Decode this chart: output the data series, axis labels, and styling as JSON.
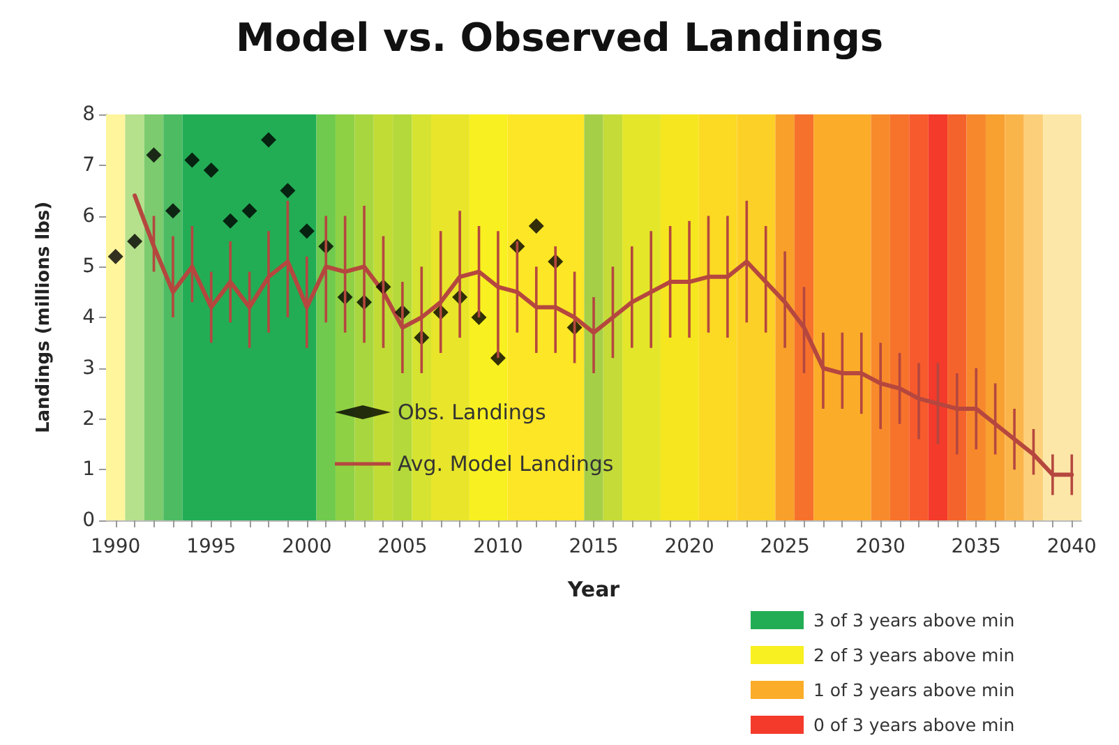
{
  "chart_data": {
    "type": "line",
    "title": "Model vs. Observed Landings",
    "xlabel": "Year",
    "ylabel": "Landings (millions lbs)",
    "x": [
      1990,
      1991,
      1992,
      1993,
      1994,
      1995,
      1996,
      1997,
      1998,
      1999,
      2000,
      2001,
      2002,
      2003,
      2004,
      2005,
      2006,
      2007,
      2008,
      2009,
      2010,
      2011,
      2012,
      2013,
      2014,
      2015,
      2016,
      2017,
      2018,
      2019,
      2020,
      2021,
      2022,
      2023,
      2024,
      2025,
      2026,
      2027,
      2028,
      2029,
      2030,
      2031,
      2032,
      2033,
      2034,
      2035,
      2036,
      2037,
      2038,
      2039,
      2040
    ],
    "series": [
      {
        "name": "Obs. Landings",
        "type": "scatter",
        "color": "#000000",
        "marker": "diamond",
        "values": [
          5.2,
          5.5,
          7.2,
          6.1,
          7.1,
          6.9,
          5.9,
          6.1,
          7.5,
          6.5,
          5.7,
          5.4,
          4.4,
          4.3,
          4.6,
          4.1,
          3.6,
          4.1,
          4.4,
          4.0,
          3.2,
          5.4,
          5.8,
          5.1,
          3.8,
          null,
          null,
          null,
          null,
          null,
          null,
          null,
          null,
          null,
          null,
          null,
          null,
          null,
          null,
          null,
          null,
          null,
          null,
          null,
          null,
          null,
          null,
          null,
          null,
          null,
          null
        ]
      },
      {
        "name": "Avg. Model Landings",
        "type": "line",
        "color": "#b5473f",
        "marker": "none",
        "values": [
          null,
          6.4,
          5.4,
          4.5,
          5.0,
          4.2,
          4.7,
          4.2,
          4.8,
          5.1,
          4.2,
          5.0,
          4.9,
          5.0,
          4.5,
          3.8,
          4.0,
          4.3,
          4.8,
          4.9,
          4.6,
          4.5,
          4.2,
          4.2,
          4.0,
          3.7,
          4.0,
          4.3,
          4.5,
          4.7,
          4.7,
          4.8,
          4.8,
          5.1,
          4.7,
          4.3,
          3.8,
          3.0,
          2.9,
          2.9,
          2.7,
          2.6,
          2.4,
          2.3,
          2.2,
          2.2,
          1.9,
          1.6,
          1.3,
          0.9,
          0.9
        ],
        "errors": [
          null,
          null,
          [
            4.9,
            6.0
          ],
          [
            4.0,
            5.6
          ],
          [
            4.3,
            5.8
          ],
          [
            3.5,
            4.9
          ],
          [
            3.9,
            5.5
          ],
          [
            3.4,
            4.9
          ],
          [
            3.7,
            5.7
          ],
          [
            4.0,
            6.3
          ],
          [
            3.4,
            5.2
          ],
          [
            3.9,
            6.0
          ],
          [
            3.7,
            6.0
          ],
          [
            3.5,
            6.2
          ],
          [
            3.4,
            5.6
          ],
          [
            2.9,
            4.7
          ],
          [
            2.9,
            5.0
          ],
          [
            3.3,
            5.7
          ],
          [
            3.6,
            6.1
          ],
          [
            4.0,
            5.8
          ],
          [
            3.2,
            5.7
          ],
          [
            3.7,
            5.5
          ],
          [
            3.3,
            5.0
          ],
          [
            3.3,
            5.4
          ],
          [
            3.1,
            4.9
          ],
          [
            2.9,
            4.4
          ],
          [
            3.2,
            5.0
          ],
          [
            3.4,
            5.4
          ],
          [
            3.4,
            5.7
          ],
          [
            3.6,
            5.8
          ],
          [
            3.6,
            5.9
          ],
          [
            3.7,
            6.0
          ],
          [
            3.6,
            6.0
          ],
          [
            3.9,
            6.3
          ],
          [
            3.7,
            5.8
          ],
          [
            3.4,
            5.3
          ],
          [
            2.9,
            4.6
          ],
          [
            2.2,
            3.7
          ],
          [
            2.2,
            3.7
          ],
          [
            2.1,
            3.7
          ],
          [
            1.8,
            3.5
          ],
          [
            1.9,
            3.3
          ],
          [
            1.6,
            3.1
          ],
          [
            1.5,
            3.1
          ],
          [
            1.3,
            2.9
          ],
          [
            1.4,
            3.0
          ],
          [
            1.3,
            2.7
          ],
          [
            1.0,
            2.2
          ],
          [
            0.9,
            1.8
          ],
          [
            0.5,
            1.3
          ],
          [
            0.5,
            1.3
          ]
        ]
      }
    ],
    "xlim": [
      1989.5,
      2040.5
    ],
    "xticks": [
      1990,
      {
        "value": 1991,
        "label": null
      },
      {
        "value": 1992,
        "label": null
      },
      {
        "value": 1993,
        "label": null
      },
      {
        "value": 1994,
        "label": null
      },
      1995,
      {
        "value": 1996,
        "label": null
      },
      {
        "value": 1997,
        "label": null
      },
      {
        "value": 1998,
        "label": null
      },
      {
        "value": 1999,
        "label": null
      },
      2000,
      {
        "value": 2001,
        "label": null
      },
      {
        "value": 2002,
        "label": null
      },
      {
        "value": 2003,
        "label": null
      },
      {
        "value": 2004,
        "label": null
      },
      2005,
      {
        "value": 2006,
        "label": null
      },
      {
        "value": 2007,
        "label": null
      },
      {
        "value": 2008,
        "label": null
      },
      {
        "value": 2009,
        "label": null
      },
      2010,
      {
        "value": 2011,
        "label": null
      },
      {
        "value": 2012,
        "label": null
      },
      {
        "value": 2013,
        "label": null
      },
      {
        "value": 2014,
        "label": null
      },
      2015,
      {
        "value": 2016,
        "label": null
      },
      {
        "value": 2017,
        "label": null
      },
      {
        "value": 2018,
        "label": null
      },
      {
        "value": 2019,
        "label": null
      },
      2020,
      {
        "value": 2021,
        "label": null
      },
      {
        "value": 2022,
        "label": null
      },
      {
        "value": 2023,
        "label": null
      },
      {
        "value": 2024,
        "label": null
      },
      2025,
      {
        "value": 2026,
        "label": null
      },
      {
        "value": 2027,
        "label": null
      },
      {
        "value": 2028,
        "label": null
      },
      {
        "value": 2029,
        "label": null
      },
      2030,
      {
        "value": 2031,
        "label": null
      },
      {
        "value": 2032,
        "label": null
      },
      {
        "value": 2033,
        "label": null
      },
      {
        "value": 2034,
        "label": null
      },
      2035,
      {
        "value": 2036,
        "label": null
      },
      {
        "value": 2037,
        "label": null
      },
      {
        "value": 2038,
        "label": null
      },
      {
        "value": 2039,
        "label": null
      },
      2040
    ],
    "ylim": [
      0,
      8
    ],
    "yticks": [
      0,
      1,
      2,
      3,
      4,
      5,
      6,
      7,
      8
    ],
    "grid": false,
    "legend": "bottom",
    "bands": [
      {
        "axis": "x",
        "from": 1989.5,
        "to": 1990.5,
        "color": "#fff59d"
      },
      {
        "axis": "x",
        "from": 1990.5,
        "to": 1991.5,
        "color": "#b5e08c"
      },
      {
        "axis": "x",
        "from": 1991.5,
        "to": 1992.5,
        "color": "#7ccb6e"
      },
      {
        "axis": "x",
        "from": 1992.5,
        "to": 1993.5,
        "color": "#4cbb62"
      },
      {
        "axis": "x",
        "from": 1993.5,
        "to": 2000.5,
        "color": "#22ad55",
        "label": "3 of 3 years above min"
      },
      {
        "axis": "x",
        "from": 2000.5,
        "to": 2001.5,
        "color": "#6fca4e"
      },
      {
        "axis": "x",
        "from": 2001.5,
        "to": 2002.5,
        "color": "#8fd144"
      },
      {
        "axis": "x",
        "from": 2002.5,
        "to": 2003.5,
        "color": "#a8d63e"
      },
      {
        "axis": "x",
        "from": 2003.5,
        "to": 2004.5,
        "color": "#c2dc36"
      },
      {
        "axis": "x",
        "from": 2004.5,
        "to": 2005.5,
        "color": "#b4d93a"
      },
      {
        "axis": "x",
        "from": 2005.5,
        "to": 2006.5,
        "color": "#d6e330"
      },
      {
        "axis": "x",
        "from": 2006.5,
        "to": 2008.5,
        "color": "#e8e52a"
      },
      {
        "axis": "x",
        "from": 2008.5,
        "to": 2010.5,
        "color": "#f8f020",
        "label": "2 of 3 years above min"
      },
      {
        "axis": "x",
        "from": 2010.5,
        "to": 2014.5,
        "color": "#fce626"
      },
      {
        "axis": "x",
        "from": 2014.5,
        "to": 2015.5,
        "color": "#a6cf48"
      },
      {
        "axis": "x",
        "from": 2015.5,
        "to": 2016.5,
        "color": "#c5dc38"
      },
      {
        "axis": "x",
        "from": 2016.5,
        "to": 2018.5,
        "color": "#e4e62a"
      },
      {
        "axis": "x",
        "from": 2018.5,
        "to": 2020.5,
        "color": "#f6e61f"
      },
      {
        "axis": "x",
        "from": 2020.5,
        "to": 2022.5,
        "color": "#fcd923"
      },
      {
        "axis": "x",
        "from": 2022.5,
        "to": 2024.5,
        "color": "#fdd027"
      },
      {
        "axis": "x",
        "from": 2024.5,
        "to": 2025.5,
        "color": "#f9a02a"
      },
      {
        "axis": "x",
        "from": 2025.5,
        "to": 2026.5,
        "color": "#f6722c"
      },
      {
        "axis": "x",
        "from": 2026.5,
        "to": 2029.5,
        "color": "#fbac28",
        "label": "1 of 3 years above min"
      },
      {
        "axis": "x",
        "from": 2029.5,
        "to": 2030.5,
        "color": "#f88a2b"
      },
      {
        "axis": "x",
        "from": 2030.5,
        "to": 2031.5,
        "color": "#f7722b"
      },
      {
        "axis": "x",
        "from": 2031.5,
        "to": 2032.5,
        "color": "#f75a2c"
      },
      {
        "axis": "x",
        "from": 2032.5,
        "to": 2033.5,
        "color": "#f43a2a",
        "label": "0 of 3 years above min"
      },
      {
        "axis": "x",
        "from": 2033.5,
        "to": 2034.5,
        "color": "#f4632b"
      },
      {
        "axis": "x",
        "from": 2034.5,
        "to": 2035.5,
        "color": "#f7882b"
      },
      {
        "axis": "x",
        "from": 2035.5,
        "to": 2036.5,
        "color": "#f8a030"
      },
      {
        "axis": "x",
        "from": 2036.5,
        "to": 2037.5,
        "color": "#fab54a"
      },
      {
        "axis": "x",
        "from": 2037.5,
        "to": 2038.5,
        "color": "#fcd07a"
      },
      {
        "axis": "x",
        "from": 2038.5,
        "to": 2040.5,
        "color": "#fde7a8"
      }
    ]
  }
}
